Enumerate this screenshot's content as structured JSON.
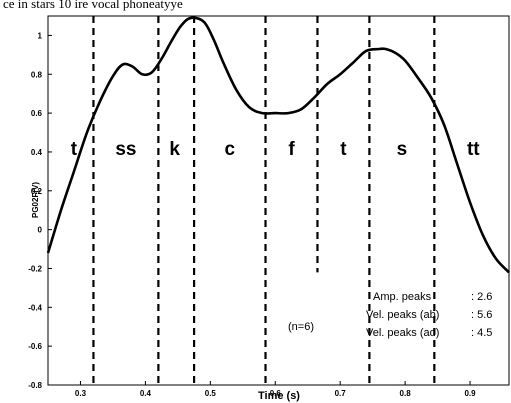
{
  "header_text": "ce in stars 10 ire vocal phoneatyye",
  "chart_data": {
    "type": "line",
    "xlabel": "Time (s)",
    "ylabel": "PG02F(V)",
    "xlim": [
      0.25,
      0.96
    ],
    "ylim": [
      -0.8,
      1.1
    ],
    "x_ticks": [
      "0.3",
      "0.4",
      "0.5",
      "0.6",
      "0.7",
      "0.8",
      "0.9"
    ],
    "y_ticks": [
      "1",
      "0.8",
      "0.6",
      "0.4",
      "0.2",
      "0",
      "-0.2",
      "-0.4",
      "-0.6",
      "-0.8"
    ],
    "series": [
      {
        "x": [
          0.25,
          0.27,
          0.29,
          0.31,
          0.33,
          0.35,
          0.365,
          0.38,
          0.395,
          0.41,
          0.425,
          0.44,
          0.455,
          0.47,
          0.49,
          0.505,
          0.52,
          0.54,
          0.56,
          0.58,
          0.6,
          0.62,
          0.64,
          0.66,
          0.68,
          0.7,
          0.72,
          0.74,
          0.76,
          0.77,
          0.785,
          0.8,
          0.82,
          0.84,
          0.86,
          0.88,
          0.9,
          0.92,
          0.94,
          0.96
        ],
        "y": [
          -0.12,
          0.1,
          0.3,
          0.5,
          0.66,
          0.79,
          0.85,
          0.84,
          0.8,
          0.81,
          0.88,
          0.97,
          1.05,
          1.09,
          1.07,
          0.98,
          0.86,
          0.72,
          0.63,
          0.6,
          0.6,
          0.6,
          0.62,
          0.68,
          0.75,
          0.8,
          0.86,
          0.92,
          0.93,
          0.93,
          0.91,
          0.87,
          0.78,
          0.68,
          0.54,
          0.34,
          0.14,
          -0.03,
          -0.15,
          -0.22
        ]
      }
    ],
    "segment_boundaries": [
      {
        "x": 0.32,
        "from": -0.8,
        "to": 1.1
      },
      {
        "x": 0.42,
        "from": -0.8,
        "to": 1.1
      },
      {
        "x": 0.475,
        "from": -0.8,
        "to": 1.1
      },
      {
        "x": 0.585,
        "from": -0.8,
        "to": 1.1
      },
      {
        "x": 0.665,
        "from": -0.22,
        "to": 1.1
      },
      {
        "x": 0.745,
        "from": -0.8,
        "to": 1.1
      },
      {
        "x": 0.845,
        "from": -0.8,
        "to": 1.1
      }
    ],
    "phase_labels": [
      {
        "text": "t",
        "x": 0.29
      },
      {
        "text": "ss",
        "x": 0.37
      },
      {
        "text": "k",
        "x": 0.445
      },
      {
        "text": "c",
        "x": 0.53
      },
      {
        "text": "f",
        "x": 0.625
      },
      {
        "text": "t",
        "x": 0.705
      },
      {
        "text": "s",
        "x": 0.795
      },
      {
        "text": "tt",
        "x": 0.905
      }
    ],
    "phase_label_y": 0.42,
    "annotations": {
      "count": "(n=6)",
      "stats": [
        {
          "label": "Amp. peaks",
          "value": ": 2.6"
        },
        {
          "label": "Vel.  peaks (ab)",
          "value": ": 5.6"
        },
        {
          "label": "Vel.  peaks (ad)",
          "value": ": 4.5"
        }
      ]
    }
  }
}
